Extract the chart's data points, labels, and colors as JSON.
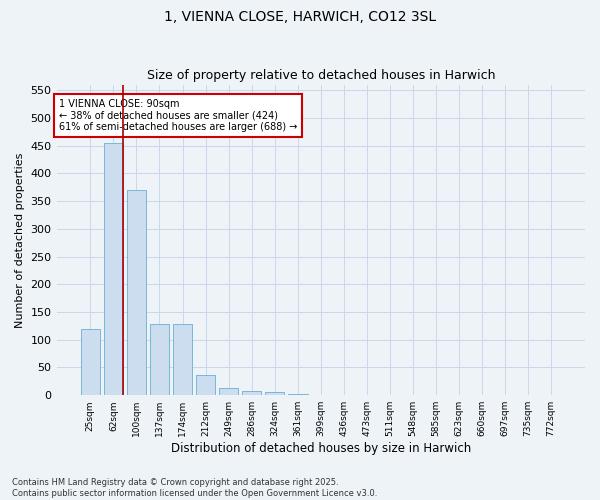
{
  "title": "1, VIENNA CLOSE, HARWICH, CO12 3SL",
  "subtitle": "Size of property relative to detached houses in Harwich",
  "xlabel": "Distribution of detached houses by size in Harwich",
  "ylabel": "Number of detached properties",
  "categories": [
    "25sqm",
    "62sqm",
    "100sqm",
    "137sqm",
    "174sqm",
    "212sqm",
    "249sqm",
    "286sqm",
    "324sqm",
    "361sqm",
    "399sqm",
    "436sqm",
    "473sqm",
    "511sqm",
    "548sqm",
    "585sqm",
    "623sqm",
    "660sqm",
    "697sqm",
    "735sqm",
    "772sqm"
  ],
  "values": [
    120,
    455,
    370,
    128,
    128,
    37,
    13,
    8,
    5,
    3,
    0,
    0,
    1,
    0,
    0,
    1,
    0,
    0,
    0,
    0,
    1
  ],
  "bar_color": "#ccddf0",
  "bar_edge_color": "#6aadd5",
  "grid_color": "#c8d8ea",
  "vline_x_index": 1,
  "vline_color": "#aa0000",
  "annotation_text": "1 VIENNA CLOSE: 90sqm\n← 38% of detached houses are smaller (424)\n61% of semi-detached houses are larger (688) →",
  "annotation_box_color": "#ffffff",
  "annotation_box_edge": "#cc0000",
  "ylim": [
    0,
    560
  ],
  "yticks": [
    0,
    50,
    100,
    150,
    200,
    250,
    300,
    350,
    400,
    450,
    500,
    550
  ],
  "footer": "Contains HM Land Registry data © Crown copyright and database right 2025.\nContains public sector information licensed under the Open Government Licence v3.0.",
  "bg_color": "#eef3f8",
  "plot_bg_color": "#eef3f8",
  "title_fontsize": 10,
  "subtitle_fontsize": 9
}
